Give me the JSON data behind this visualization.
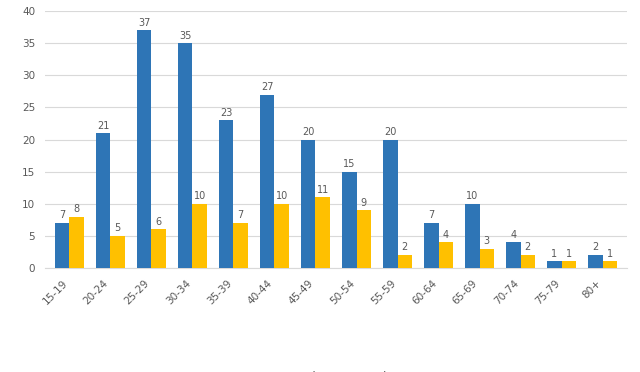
{
  "age_groups": [
    "15-19",
    "20-24",
    "25-29",
    "30-34",
    "35-39",
    "40-44",
    "45-49",
    "50-54",
    "55-59",
    "60-64",
    "65-69",
    "70-74",
    "75-79",
    "80+"
  ],
  "male": [
    7,
    21,
    37,
    35,
    23,
    27,
    20,
    15,
    20,
    7,
    10,
    4,
    1,
    2
  ],
  "female": [
    8,
    5,
    6,
    10,
    7,
    10,
    11,
    9,
    2,
    4,
    3,
    2,
    1,
    1
  ],
  "male_color": "#2E75B6",
  "female_color": "#FFC000",
  "ylim": [
    0,
    40
  ],
  "yticks": [
    0,
    5,
    10,
    15,
    20,
    25,
    30,
    35,
    40
  ],
  "bar_width": 0.35,
  "label_fontsize": 7,
  "tick_fontsize": 7.5,
  "legend_fontsize": 8.5,
  "background_color": "#FFFFFF",
  "grid_color": "#D9D9D9",
  "text_color": "#595959"
}
